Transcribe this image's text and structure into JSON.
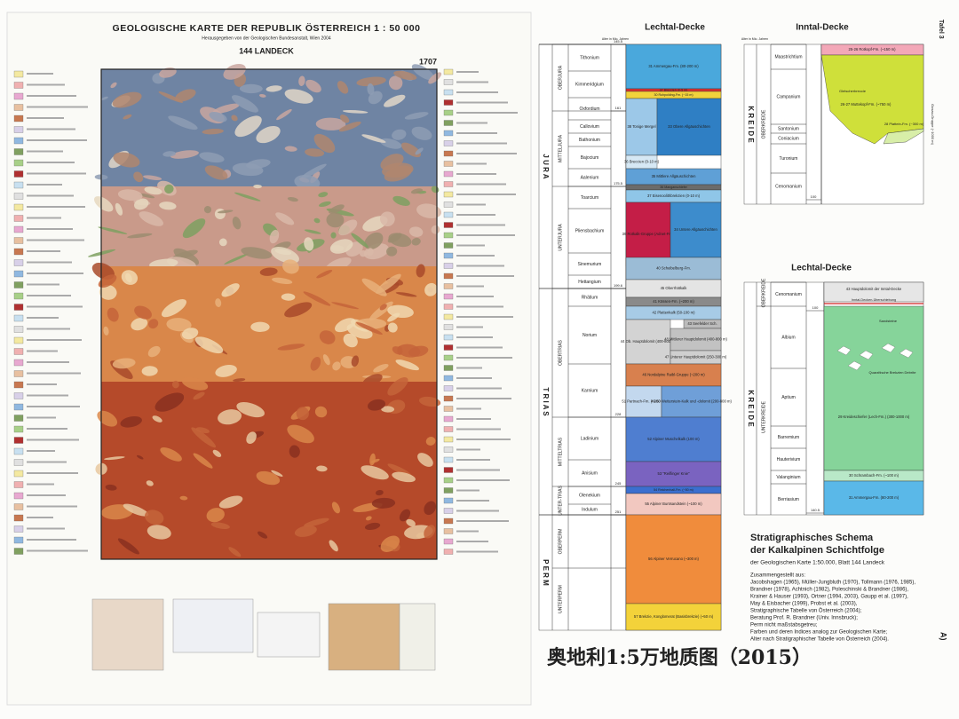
{
  "map": {
    "title": "GEOLOGISCHE KARTE DER REPUBLIK ÖSTERREICH 1 : 50 000",
    "subtitle": "Herausgegeben von der Geologischen Bundesanstalt, Wien 2004",
    "sheet": "144 LANDECK",
    "sheet_number": "1707"
  },
  "plate": "Tafel 3",
  "corner_mark": "A)",
  "lechtal": {
    "title": "Lechtal-Decke",
    "age_header": "Alter in Mio. Jahren",
    "periods": [
      "J U R A",
      "T R I A S",
      "P E R M"
    ],
    "epochs": [
      "OBERJURA",
      "MITTELJURA",
      "UNTERJURA",
      "OBERTRIAS",
      "MITTELTRIAS",
      "UNTER-TRIAS",
      "OBERPERM",
      "UNTERPERM"
    ],
    "stages": [
      "Tithonium",
      "Kimmeridgium",
      "Oxfordium",
      "Callovium",
      "Bathonium",
      "Bajocium",
      "Aalenium",
      "Toarcium",
      "Pliensbachium",
      "Sinemurium",
      "Hettangium",
      "Rhätium",
      "Norium",
      "Karnium",
      "Ladinium",
      "Anisium",
      "Olenekium",
      "Indulum"
    ],
    "ages": [
      "145.5",
      "161",
      "175.5",
      "199.6",
      "228",
      "245",
      "251"
    ],
    "units": [
      "31 Ammergau-Fm. (80-200 m)",
      "37 Breccien (0-5 m)",
      "30 Ruhpolding-Fm. (~15 m)",
      "38 Tonige Mergel",
      "33 Obere Allgäuschichten",
      "36 Breccien (0-10 m)",
      "35 Mittlere Allgäuschichten",
      "36 Manganschiefer",
      "37 Eisenoolithbrekzien (0-10 m)",
      "39 Rotkalk-Gruppe (Adnet-Fm.)",
      "34 Untere Allgäuschichten",
      "40 Scheibelberg-Fm.",
      "45 Oberrhätkalk",
      "41 Kössen-Fm. (~200 m)",
      "42 Plattenkalk (50-100 m)",
      "43 Seefelder Sch.",
      "44 Ob. Hauptdolomit (400-800 m)",
      "48 Mittlerer Hauptdolomit (400-800 m)",
      "47 Unterer Hauptdolomit (250-300 m)",
      "46 Nordalpine Raibl-Gruppe (~200 m)",
      "51 Partnach-Fm. (~200 m)",
      "49-50 Wetterstein-Kalk und -dolomit (200-800 m)",
      "52 Alpiner Muschelkalk (100 m)",
      "53 \"Reiflinger Knie\"",
      "54 Reichenhall-Fm. (~50 m)",
      "55 Alpiner Buntsandstein (~100 m)",
      "56 Alpiner Verrucano (~300 m)",
      "57 Brekzie, Konglomerat (Basisbrekzie) (~50 m)"
    ]
  },
  "inntal": {
    "title": "Inntal-Decke",
    "age_header": "Alter in Mio. Jahren",
    "period": "K R E I D E",
    "epoch": "OBERKREIDE",
    "stages": [
      "Maastrichtium",
      "Campanium",
      "Santonium",
      "Coniacium",
      "Turonium",
      "Cenomanium"
    ],
    "units": [
      "25-26 Rotkopf-Fm. (~150 m)",
      "Gletscherbreccie",
      "26-27 Muttekopf-Fm. (~750 m)",
      "28 Plattein-Fm. (~300 m)"
    ],
    "group": "Gosau-Gruppe (~1000 m)",
    "ages": [
      "100"
    ]
  },
  "lechtal_lower": {
    "title": "Lechtal-Decke",
    "period": "K R E I D E",
    "epochs": [
      "OBERKREIDE",
      "UNTERKREIDE"
    ],
    "stages": [
      "Cenomanium",
      "Albium",
      "Aptium",
      "Barremium",
      "Hauterivium",
      "Valanginium",
      "Berriasium"
    ],
    "units": [
      "43 Hauptdolomit der Inntal-Decke",
      "Inntal-Decken-Überschiebung",
      "Sandsteine",
      "Quarzitische Brekzien Debrite",
      "29 Kreideschiefer (Lech-Fm.) (300-1000 m)",
      "30 Schrambach-Fm. (~100 m)",
      "31 Ammergau-Fm. (80-200 m)"
    ],
    "ages": [
      "100",
      "140.5"
    ]
  },
  "scheme": {
    "title_1": "Stratigraphisches Schema",
    "title_2": "der Kalkalpinen Schichtfolge",
    "subtitle": "der Geologischen Karte 1:50.000, Blatt 144 Landeck",
    "references": [
      "Zusammengestellt aus:",
      "Jacobshagen (1965), Müller-Jungbluth (1970), Tollmann (1976, 1985),",
      "Brandner (1978), Achtnich (1982), Poleschinski & Brandner (1986),",
      "Krainer & Hauser (1993), Ortner (1994, 2003), Gaupp et al. (1997),",
      "May & Eisbacher (1999), Probst et al. (2003),",
      "Stratigraphische Tabelle von Österreich (2004);",
      "Beratung Prof. R. Brandner (Univ. Innsbruck);",
      "Perm nicht maßstabsgetreu;",
      "Farben und deren Indices analog zur Geologischen Karte;",
      "Alter nach Stratigraphischer Tabelle von Österreich (2004)."
    ]
  },
  "caption": "奥地利1:5万地质图（2015）"
}
